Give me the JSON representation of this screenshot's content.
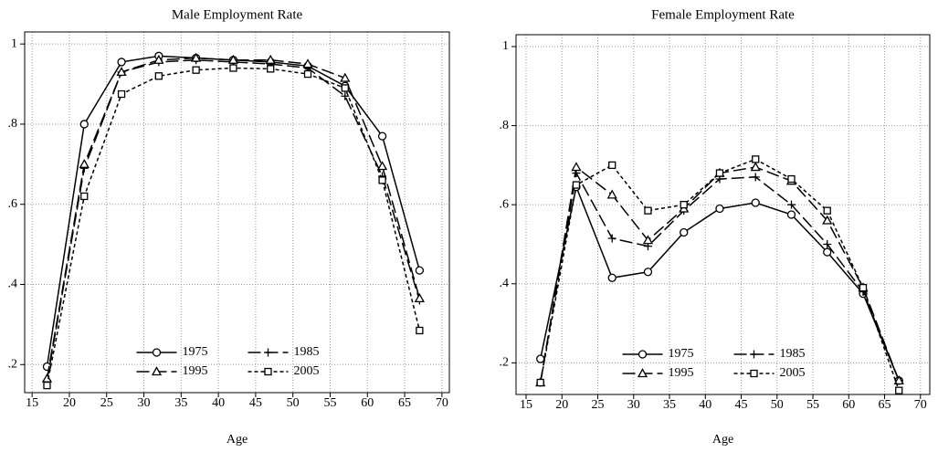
{
  "chart_data": [
    {
      "type": "line",
      "title": "Male Employment Rate",
      "xlabel": "Age",
      "x": [
        17,
        22,
        27,
        32,
        37,
        42,
        47,
        52,
        57,
        62,
        67
      ],
      "series": [
        {
          "name": "1975",
          "color": "#000000",
          "dash": "solid",
          "marker": "circle",
          "values": [
            0.195,
            0.8,
            0.955,
            0.97,
            0.965,
            0.96,
            0.955,
            0.945,
            0.895,
            0.77,
            0.435
          ]
        },
        {
          "name": "1985",
          "color": "#000000",
          "dash": "long",
          "marker": "plus",
          "values": [
            0.16,
            0.69,
            0.93,
            0.955,
            0.96,
            0.955,
            0.95,
            0.94,
            0.87,
            0.67,
            0.36
          ]
        },
        {
          "name": "1995",
          "color": "#000000",
          "dash": "long",
          "marker": "triangle",
          "values": [
            0.165,
            0.7,
            0.93,
            0.96,
            0.965,
            0.96,
            0.96,
            0.95,
            0.915,
            0.695,
            0.365
          ]
        },
        {
          "name": "2005",
          "color": "#000000",
          "dash": "short",
          "marker": "square",
          "values": [
            0.148,
            0.62,
            0.875,
            0.92,
            0.935,
            0.94,
            0.938,
            0.925,
            0.89,
            0.66,
            0.285
          ]
        }
      ],
      "xlim": [
        14,
        71
      ],
      "ylim": [
        0.13,
        1.03
      ],
      "xticks": [
        15,
        20,
        25,
        30,
        35,
        40,
        45,
        50,
        55,
        60,
        65,
        70
      ],
      "yticks": [
        {
          "value": 0.2,
          "label": ".2"
        },
        {
          "value": 0.4,
          "label": ".4"
        },
        {
          "value": 0.6,
          "label": ".6"
        },
        {
          "value": 0.8,
          "label": ".8"
        },
        1
      ],
      "grid": true,
      "legend": "bottom"
    },
    {
      "type": "line",
      "title": "Female Employment Rate",
      "xlabel": "Age",
      "x": [
        17,
        22,
        27,
        32,
        37,
        42,
        47,
        52,
        57,
        62,
        67
      ],
      "series": [
        {
          "name": "1975",
          "color": "#000000",
          "dash": "solid",
          "marker": "circle",
          "values": [
            0.21,
            0.645,
            0.415,
            0.43,
            0.53,
            0.59,
            0.605,
            0.575,
            0.48,
            0.375,
            0.155
          ]
        },
        {
          "name": "1985",
          "color": "#000000",
          "dash": "long",
          "marker": "plus",
          "values": [
            0.15,
            0.68,
            0.515,
            0.495,
            0.585,
            0.665,
            0.67,
            0.6,
            0.5,
            0.38,
            0.155
          ]
        },
        {
          "name": "1995",
          "color": "#000000",
          "dash": "long",
          "marker": "triangle",
          "values": [
            0.15,
            0.695,
            0.625,
            0.51,
            0.59,
            0.68,
            0.695,
            0.66,
            0.56,
            0.39,
            0.155
          ]
        },
        {
          "name": "2005",
          "color": "#000000",
          "dash": "short",
          "marker": "square",
          "values": [
            0.15,
            0.65,
            0.7,
            0.585,
            0.6,
            0.68,
            0.715,
            0.665,
            0.585,
            0.39,
            0.13
          ]
        }
      ],
      "xlim": [
        13.6,
        71.3
      ],
      "ylim": [
        0.12,
        1.03
      ],
      "xticks": [
        15,
        20,
        25,
        30,
        35,
        40,
        45,
        50,
        55,
        60,
        65,
        70
      ],
      "yticks": [
        {
          "value": 0.2,
          "label": ".2"
        },
        {
          "value": 0.4,
          "label": ".4"
        },
        {
          "value": 0.6,
          "label": ".6"
        },
        {
          "value": 0.8,
          "label": ".8"
        },
        1
      ],
      "grid": true,
      "legend": "bottom"
    }
  ]
}
